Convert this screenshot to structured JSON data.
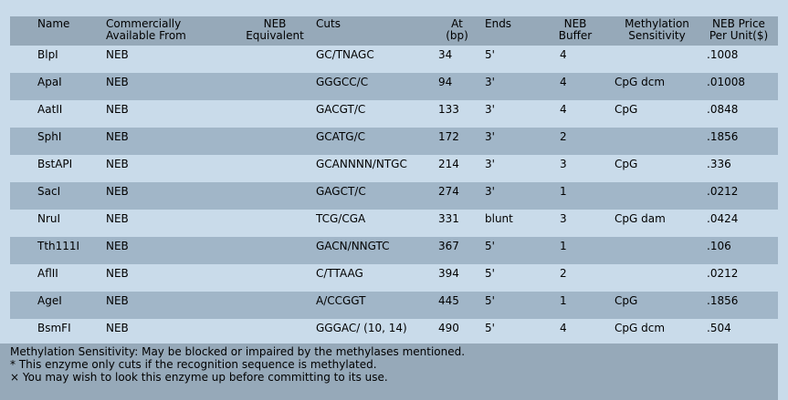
{
  "headers": {
    "name": "Name",
    "available_l1": "Commercially",
    "available_l2": "Available From",
    "neb_eq_l1": "NEB",
    "neb_eq_l2": "Equivalent",
    "cuts": "Cuts",
    "at_l1": "At",
    "at_l2": "(bp)",
    "ends": "Ends",
    "buffer_l1": "NEB",
    "buffer_l2": "Buffer",
    "methyl_l1": "Methylation",
    "methyl_l2": "Sensitivity",
    "price_l1": "NEB Price",
    "price_l2": "Per Unit($)"
  },
  "rows": [
    {
      "name": "BlpI",
      "available": "NEB",
      "neb_equivalent": "",
      "cuts": "GC/TNAGC",
      "at": "34",
      "ends": "5'",
      "buffer": "4",
      "methylation": "",
      "price": ".1008"
    },
    {
      "name": "ApaI",
      "available": "NEB",
      "neb_equivalent": "",
      "cuts": "GGGCC/C",
      "at": "94",
      "ends": "3'",
      "buffer": "4",
      "methylation": "CpG dcm",
      "price": ".01008"
    },
    {
      "name": "AatII",
      "available": "NEB",
      "neb_equivalent": "",
      "cuts": "GACGT/C",
      "at": "133",
      "ends": "3'",
      "buffer": "4",
      "methylation": "CpG",
      "price": ".0848"
    },
    {
      "name": "SphI",
      "available": "NEB",
      "neb_equivalent": "",
      "cuts": "GCATG/C",
      "at": "172",
      "ends": "3'",
      "buffer": "2",
      "methylation": "",
      "price": ".1856"
    },
    {
      "name": "BstAPI",
      "available": "NEB",
      "neb_equivalent": "",
      "cuts": "GCANNNN/NTGC",
      "at": "214",
      "ends": "3'",
      "buffer": "3",
      "methylation": "CpG",
      "price": ".336"
    },
    {
      "name": "SacI",
      "available": "NEB",
      "neb_equivalent": "",
      "cuts": "GAGCT/C",
      "at": "274",
      "ends": "3'",
      "buffer": "1",
      "methylation": "",
      "price": ".0212"
    },
    {
      "name": "NruI",
      "available": "NEB",
      "neb_equivalent": "",
      "cuts": "TCG/CGA",
      "at": "331",
      "ends": "blunt",
      "buffer": "3",
      "methylation": "CpG dam",
      "price": ".0424"
    },
    {
      "name": "Tth111I",
      "available": "NEB",
      "neb_equivalent": "",
      "cuts": "GACN/NNGTC",
      "at": "367",
      "ends": "5'",
      "buffer": "1",
      "methylation": "",
      "price": ".106"
    },
    {
      "name": "AflII",
      "available": "NEB",
      "neb_equivalent": "",
      "cuts": "C/TTAAG",
      "at": "394",
      "ends": "5'",
      "buffer": "2",
      "methylation": "",
      "price": ".0212"
    },
    {
      "name": "AgeI",
      "available": "NEB",
      "neb_equivalent": "",
      "cuts": "A/CCGGT",
      "at": "445",
      "ends": "5'",
      "buffer": "1",
      "methylation": "CpG",
      "price": ".1856"
    },
    {
      "name": "BsmFI",
      "available": "NEB",
      "neb_equivalent": "",
      "cuts": "GGGAC/ (10, 14)",
      "at": "490",
      "ends": "5'",
      "buffer": "4",
      "methylation": "CpG dcm",
      "price": ".504"
    }
  ],
  "footnotes": {
    "line1": "Methylation Sensitivity: May be blocked or impaired by the methylases mentioned.",
    "line2": "* This enzyme only cuts if the recognition sequence is methylated.",
    "line3": "× You may wish to look this enzyme up before committing to its use."
  }
}
